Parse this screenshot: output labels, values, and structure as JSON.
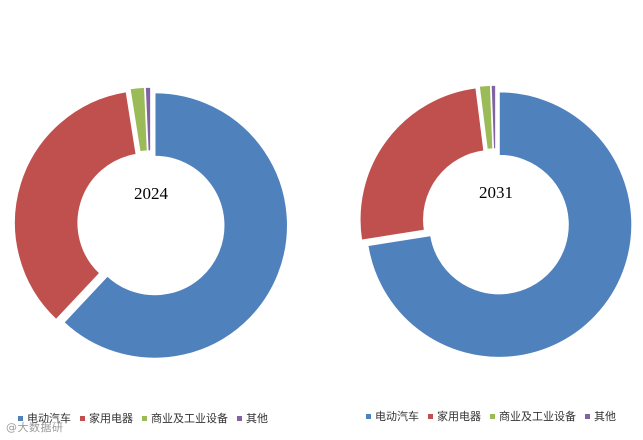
{
  "chart_data": [
    {
      "type": "pie",
      "style": "donut",
      "center_label": "2024",
      "categories": [
        "电动汽车",
        "家用电器",
        "商业及工业设备",
        "其他"
      ],
      "values": [
        0.62,
        0.355,
        0.018,
        0.007
      ],
      "colors": [
        "#4F81BD",
        "#C0504D",
        "#9BBB59",
        "#8064A2"
      ],
      "legend_position": "bottom"
    },
    {
      "type": "pie",
      "style": "donut",
      "center_label": "2031",
      "categories": [
        "电动汽车",
        "家用电器",
        "商业及工业设备",
        "其他"
      ],
      "values": [
        0.725,
        0.255,
        0.014,
        0.006
      ],
      "colors": [
        "#4F81BD",
        "#C0504D",
        "#9BBB59",
        "#8064A2"
      ],
      "legend_position": "bottom"
    }
  ],
  "legend": {
    "items": [
      {
        "label": "电动汽车",
        "color": "#4F81BD"
      },
      {
        "label": "家用电器",
        "color": "#C0504D"
      },
      {
        "label": "商业及工业设备",
        "color": "#9BBB59"
      },
      {
        "label": "其他",
        "color": "#8064A2"
      }
    ]
  },
  "watermark": "@大数据研"
}
